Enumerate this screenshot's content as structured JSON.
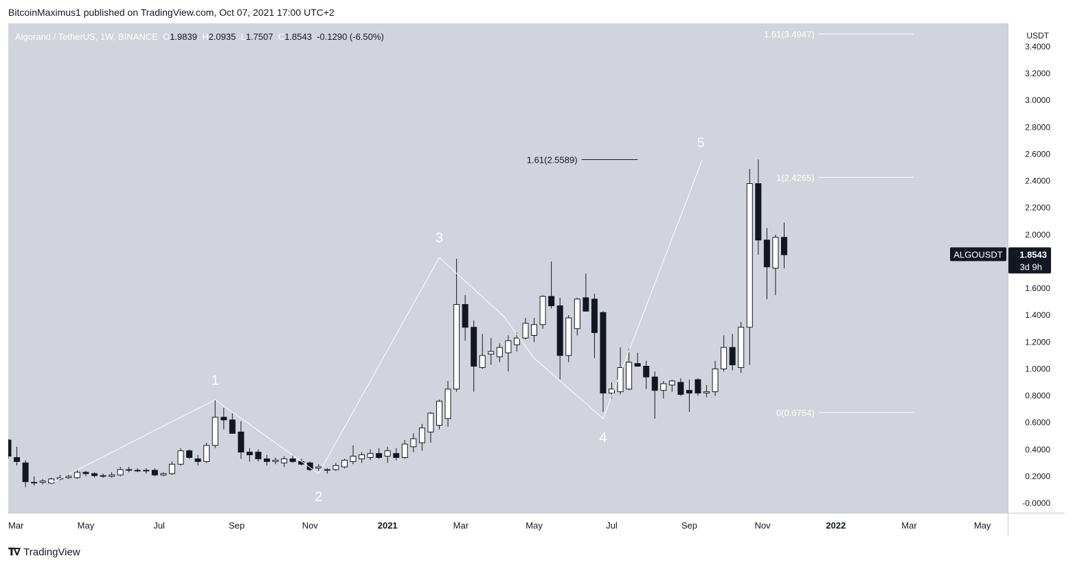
{
  "publish_line": "BitcoinMaximus1 published on TradingView.com, Oct 07, 2021 17:00 UTC+2",
  "footer_brand": "TradingView",
  "logo_icon": "tradingview-logo-icon",
  "colors": {
    "plot_bg": "#d1d4dc",
    "axis_bg": "#ffffff",
    "up_body": "#ffffff",
    "down_body": "#131722",
    "candle_outline": "#131722",
    "wave_line": "#ffffff",
    "fib_line": "#ffffff",
    "label_bg": "#131722"
  },
  "chart_data": {
    "type": "candlestick",
    "title": "Algorand / TetherUS, 1W, BINANCE",
    "ohlc_legend": {
      "o_label": "O",
      "o": "1.9839",
      "h_label": "H",
      "h": "2.0935",
      "l_label": "L",
      "l": "1.7507",
      "c_label": "C",
      "c": "1.8543",
      "change": "-0.1290 (-6.50%)"
    },
    "currency": "USDT",
    "y_ticks": [
      "3.4000",
      "3.2000",
      "3.0000",
      "2.8000",
      "2.6000",
      "2.4000",
      "2.2000",
      "2.0000",
      "1.8000",
      "1.6000",
      "1.4000",
      "1.2000",
      "1.0000",
      "0.8000",
      "0.6000",
      "0.4000",
      "0.2000",
      "-0.0000"
    ],
    "ylim": [
      -0.05,
      3.5
    ],
    "x_ticks": [
      {
        "label": "Mar",
        "week": 0
      },
      {
        "label": "May",
        "week": 9
      },
      {
        "label": "Jul",
        "week": 17.5
      },
      {
        "label": "Sep",
        "week": 26.5
      },
      {
        "label": "Nov",
        "week": 35
      },
      {
        "label": "2021",
        "week": 44
      },
      {
        "label": "Mar",
        "week": 52.5
      },
      {
        "label": "May",
        "week": 61
      },
      {
        "label": "Jul",
        "week": 70
      },
      {
        "label": "Sep",
        "week": 79
      },
      {
        "label": "Nov",
        "week": 87.5
      },
      {
        "label": "2022",
        "week": 96
      },
      {
        "label": "Mar",
        "week": 104.5
      },
      {
        "label": "May",
        "week": 113
      }
    ],
    "x_range_weeks": [
      -0.5,
      116
    ],
    "candles": [
      {
        "o": 0.47,
        "h": 0.48,
        "l": 0.33,
        "c": 0.35
      },
      {
        "o": 0.34,
        "h": 0.42,
        "l": 0.28,
        "c": 0.31
      },
      {
        "o": 0.3,
        "h": 0.32,
        "l": 0.12,
        "c": 0.16
      },
      {
        "o": 0.15,
        "h": 0.2,
        "l": 0.13,
        "c": 0.155
      },
      {
        "o": 0.155,
        "h": 0.18,
        "l": 0.14,
        "c": 0.165
      },
      {
        "o": 0.15,
        "h": 0.19,
        "l": 0.14,
        "c": 0.18
      },
      {
        "o": 0.18,
        "h": 0.21,
        "l": 0.17,
        "c": 0.19
      },
      {
        "o": 0.19,
        "h": 0.22,
        "l": 0.18,
        "c": 0.2
      },
      {
        "o": 0.19,
        "h": 0.25,
        "l": 0.18,
        "c": 0.23
      },
      {
        "o": 0.23,
        "h": 0.24,
        "l": 0.2,
        "c": 0.22
      },
      {
        "o": 0.22,
        "h": 0.23,
        "l": 0.19,
        "c": 0.205
      },
      {
        "o": 0.205,
        "h": 0.22,
        "l": 0.19,
        "c": 0.2
      },
      {
        "o": 0.2,
        "h": 0.23,
        "l": 0.19,
        "c": 0.21
      },
      {
        "o": 0.21,
        "h": 0.27,
        "l": 0.2,
        "c": 0.25
      },
      {
        "o": 0.25,
        "h": 0.27,
        "l": 0.23,
        "c": 0.245
      },
      {
        "o": 0.245,
        "h": 0.26,
        "l": 0.23,
        "c": 0.24
      },
      {
        "o": 0.24,
        "h": 0.26,
        "l": 0.22,
        "c": 0.245
      },
      {
        "o": 0.245,
        "h": 0.26,
        "l": 0.2,
        "c": 0.21
      },
      {
        "o": 0.21,
        "h": 0.23,
        "l": 0.2,
        "c": 0.22
      },
      {
        "o": 0.22,
        "h": 0.31,
        "l": 0.21,
        "c": 0.29
      },
      {
        "o": 0.29,
        "h": 0.41,
        "l": 0.28,
        "c": 0.39
      },
      {
        "o": 0.39,
        "h": 0.4,
        "l": 0.33,
        "c": 0.34
      },
      {
        "o": 0.33,
        "h": 0.36,
        "l": 0.28,
        "c": 0.31
      },
      {
        "o": 0.31,
        "h": 0.45,
        "l": 0.3,
        "c": 0.43
      },
      {
        "o": 0.43,
        "h": 0.77,
        "l": 0.41,
        "c": 0.64
      },
      {
        "o": 0.64,
        "h": 0.71,
        "l": 0.55,
        "c": 0.62
      },
      {
        "o": 0.62,
        "h": 0.67,
        "l": 0.52,
        "c": 0.52
      },
      {
        "o": 0.53,
        "h": 0.61,
        "l": 0.33,
        "c": 0.38
      },
      {
        "o": 0.38,
        "h": 0.41,
        "l": 0.31,
        "c": 0.36
      },
      {
        "o": 0.38,
        "h": 0.4,
        "l": 0.31,
        "c": 0.33
      },
      {
        "o": 0.33,
        "h": 0.36,
        "l": 0.28,
        "c": 0.31
      },
      {
        "o": 0.31,
        "h": 0.34,
        "l": 0.29,
        "c": 0.32
      },
      {
        "o": 0.3,
        "h": 0.35,
        "l": 0.27,
        "c": 0.33
      },
      {
        "o": 0.33,
        "h": 0.36,
        "l": 0.3,
        "c": 0.31
      },
      {
        "o": 0.31,
        "h": 0.33,
        "l": 0.28,
        "c": 0.29
      },
      {
        "o": 0.3,
        "h": 0.31,
        "l": 0.24,
        "c": 0.25
      },
      {
        "o": 0.26,
        "h": 0.29,
        "l": 0.24,
        "c": 0.27
      },
      {
        "o": 0.25,
        "h": 0.26,
        "l": 0.22,
        "c": 0.25
      },
      {
        "o": 0.25,
        "h": 0.3,
        "l": 0.24,
        "c": 0.28
      },
      {
        "o": 0.27,
        "h": 0.33,
        "l": 0.26,
        "c": 0.32
      },
      {
        "o": 0.31,
        "h": 0.43,
        "l": 0.29,
        "c": 0.35
      },
      {
        "o": 0.33,
        "h": 0.38,
        "l": 0.3,
        "c": 0.36
      },
      {
        "o": 0.34,
        "h": 0.4,
        "l": 0.32,
        "c": 0.37
      },
      {
        "o": 0.37,
        "h": 0.41,
        "l": 0.33,
        "c": 0.34
      },
      {
        "o": 0.35,
        "h": 0.42,
        "l": 0.3,
        "c": 0.39
      },
      {
        "o": 0.37,
        "h": 0.41,
        "l": 0.32,
        "c": 0.34
      },
      {
        "o": 0.34,
        "h": 0.47,
        "l": 0.33,
        "c": 0.44
      },
      {
        "o": 0.42,
        "h": 0.52,
        "l": 0.38,
        "c": 0.48
      },
      {
        "o": 0.45,
        "h": 0.59,
        "l": 0.39,
        "c": 0.56
      },
      {
        "o": 0.53,
        "h": 0.68,
        "l": 0.45,
        "c": 0.67
      },
      {
        "o": 0.58,
        "h": 0.77,
        "l": 0.55,
        "c": 0.76
      },
      {
        "o": 0.63,
        "h": 0.91,
        "l": 0.57,
        "c": 0.85
      },
      {
        "o": 0.85,
        "h": 1.82,
        "l": 0.83,
        "c": 1.48
      },
      {
        "o": 1.48,
        "h": 1.55,
        "l": 1.21,
        "c": 1.31
      },
      {
        "o": 1.31,
        "h": 1.36,
        "l": 0.83,
        "c": 1.02
      },
      {
        "o": 1.01,
        "h": 1.26,
        "l": 1.0,
        "c": 1.1
      },
      {
        "o": 1.11,
        "h": 1.23,
        "l": 1.03,
        "c": 1.13
      },
      {
        "o": 1.09,
        "h": 1.19,
        "l": 1.05,
        "c": 1.16
      },
      {
        "o": 1.12,
        "h": 1.25,
        "l": 0.98,
        "c": 1.21
      },
      {
        "o": 1.18,
        "h": 1.27,
        "l": 1.13,
        "c": 1.23
      },
      {
        "o": 1.23,
        "h": 1.38,
        "l": 1.22,
        "c": 1.34
      },
      {
        "o": 1.25,
        "h": 1.38,
        "l": 1.2,
        "c": 1.33
      },
      {
        "o": 1.33,
        "h": 1.55,
        "l": 1.3,
        "c": 1.54
      },
      {
        "o": 1.54,
        "h": 1.8,
        "l": 1.45,
        "c": 1.47
      },
      {
        "o": 1.47,
        "h": 1.53,
        "l": 0.92,
        "c": 1.1
      },
      {
        "o": 1.1,
        "h": 1.4,
        "l": 1.05,
        "c": 1.38
      },
      {
        "o": 1.3,
        "h": 1.53,
        "l": 1.25,
        "c": 1.52
      },
      {
        "o": 1.53,
        "h": 1.71,
        "l": 1.45,
        "c": 1.43
      },
      {
        "o": 1.52,
        "h": 1.56,
        "l": 1.08,
        "c": 1.27
      },
      {
        "o": 1.42,
        "h": 1.43,
        "l": 0.68,
        "c": 0.82
      },
      {
        "o": 0.82,
        "h": 0.9,
        "l": 0.78,
        "c": 0.85
      },
      {
        "o": 0.83,
        "h": 1.16,
        "l": 0.81,
        "c": 1.01
      },
      {
        "o": 0.85,
        "h": 1.15,
        "l": 0.84,
        "c": 1.05
      },
      {
        "o": 1.04,
        "h": 1.12,
        "l": 1.02,
        "c": 1.02
      },
      {
        "o": 1.02,
        "h": 1.06,
        "l": 0.85,
        "c": 0.94
      },
      {
        "o": 0.94,
        "h": 0.98,
        "l": 0.63,
        "c": 0.84
      },
      {
        "o": 0.84,
        "h": 0.91,
        "l": 0.78,
        "c": 0.89
      },
      {
        "o": 0.88,
        "h": 0.92,
        "l": 0.83,
        "c": 0.91
      },
      {
        "o": 0.9,
        "h": 0.93,
        "l": 0.8,
        "c": 0.81
      },
      {
        "o": 0.84,
        "h": 0.92,
        "l": 0.68,
        "c": 0.82
      },
      {
        "o": 0.92,
        "h": 0.93,
        "l": 0.8,
        "c": 0.82
      },
      {
        "o": 0.82,
        "h": 0.88,
        "l": 0.79,
        "c": 0.83
      },
      {
        "o": 0.83,
        "h": 1.06,
        "l": 0.8,
        "c": 1.0
      },
      {
        "o": 1.0,
        "h": 1.25,
        "l": 0.98,
        "c": 1.16
      },
      {
        "o": 1.16,
        "h": 1.26,
        "l": 0.99,
        "c": 1.03
      },
      {
        "o": 1.01,
        "h": 1.35,
        "l": 0.97,
        "c": 1.31
      },
      {
        "o": 1.31,
        "h": 2.49,
        "l": 1.03,
        "c": 2.38
      },
      {
        "o": 2.38,
        "h": 2.56,
        "l": 1.85,
        "c": 1.96
      },
      {
        "o": 1.96,
        "h": 2.05,
        "l": 1.52,
        "c": 1.76
      },
      {
        "o": 1.75,
        "h": 2.0,
        "l": 1.55,
        "c": 1.98
      },
      {
        "o": 1.98,
        "h": 2.09,
        "l": 1.75,
        "c": 1.85
      }
    ],
    "wave_points": [
      {
        "label": "",
        "week": 5,
        "price": 0.15
      },
      {
        "label": "1",
        "week": 24,
        "price": 0.77
      },
      {
        "label": "2",
        "week": 36,
        "price": 0.22
      },
      {
        "label": "3",
        "week": 50,
        "price": 1.83
      },
      {
        "label": "",
        "week": 57.5,
        "price": 1.39
      },
      {
        "label": "",
        "week": 61,
        "price": 1.08
      },
      {
        "label": "4",
        "week": 69,
        "price": 0.63
      },
      {
        "label": "",
        "week": 79.5,
        "price": 2.39
      },
      {
        "label": "5",
        "week": 80.5,
        "price": 2.56
      }
    ],
    "fib_levels": [
      {
        "label": "1.61(3.4947)",
        "price": 3.4947,
        "week_from": 94,
        "week_to": 105,
        "text_color": "#ffffff"
      },
      {
        "label": "1(2.4265)",
        "price": 2.4265,
        "week_from": 94,
        "week_to": 105,
        "text_color": "#ffffff"
      },
      {
        "label": "0(0.6754)",
        "price": 0.6754,
        "week_from": 94,
        "week_to": 105,
        "text_color": "#ffffff"
      },
      {
        "label": "1.61(2.5589)",
        "price": 2.5589,
        "week_from": 66.5,
        "week_to": 73,
        "text_color": "#131722"
      }
    ],
    "price_label": {
      "symbol": "ALGOUSDT",
      "price": "1.8543",
      "countdown": "3d 9h",
      "value": 1.8543
    }
  }
}
